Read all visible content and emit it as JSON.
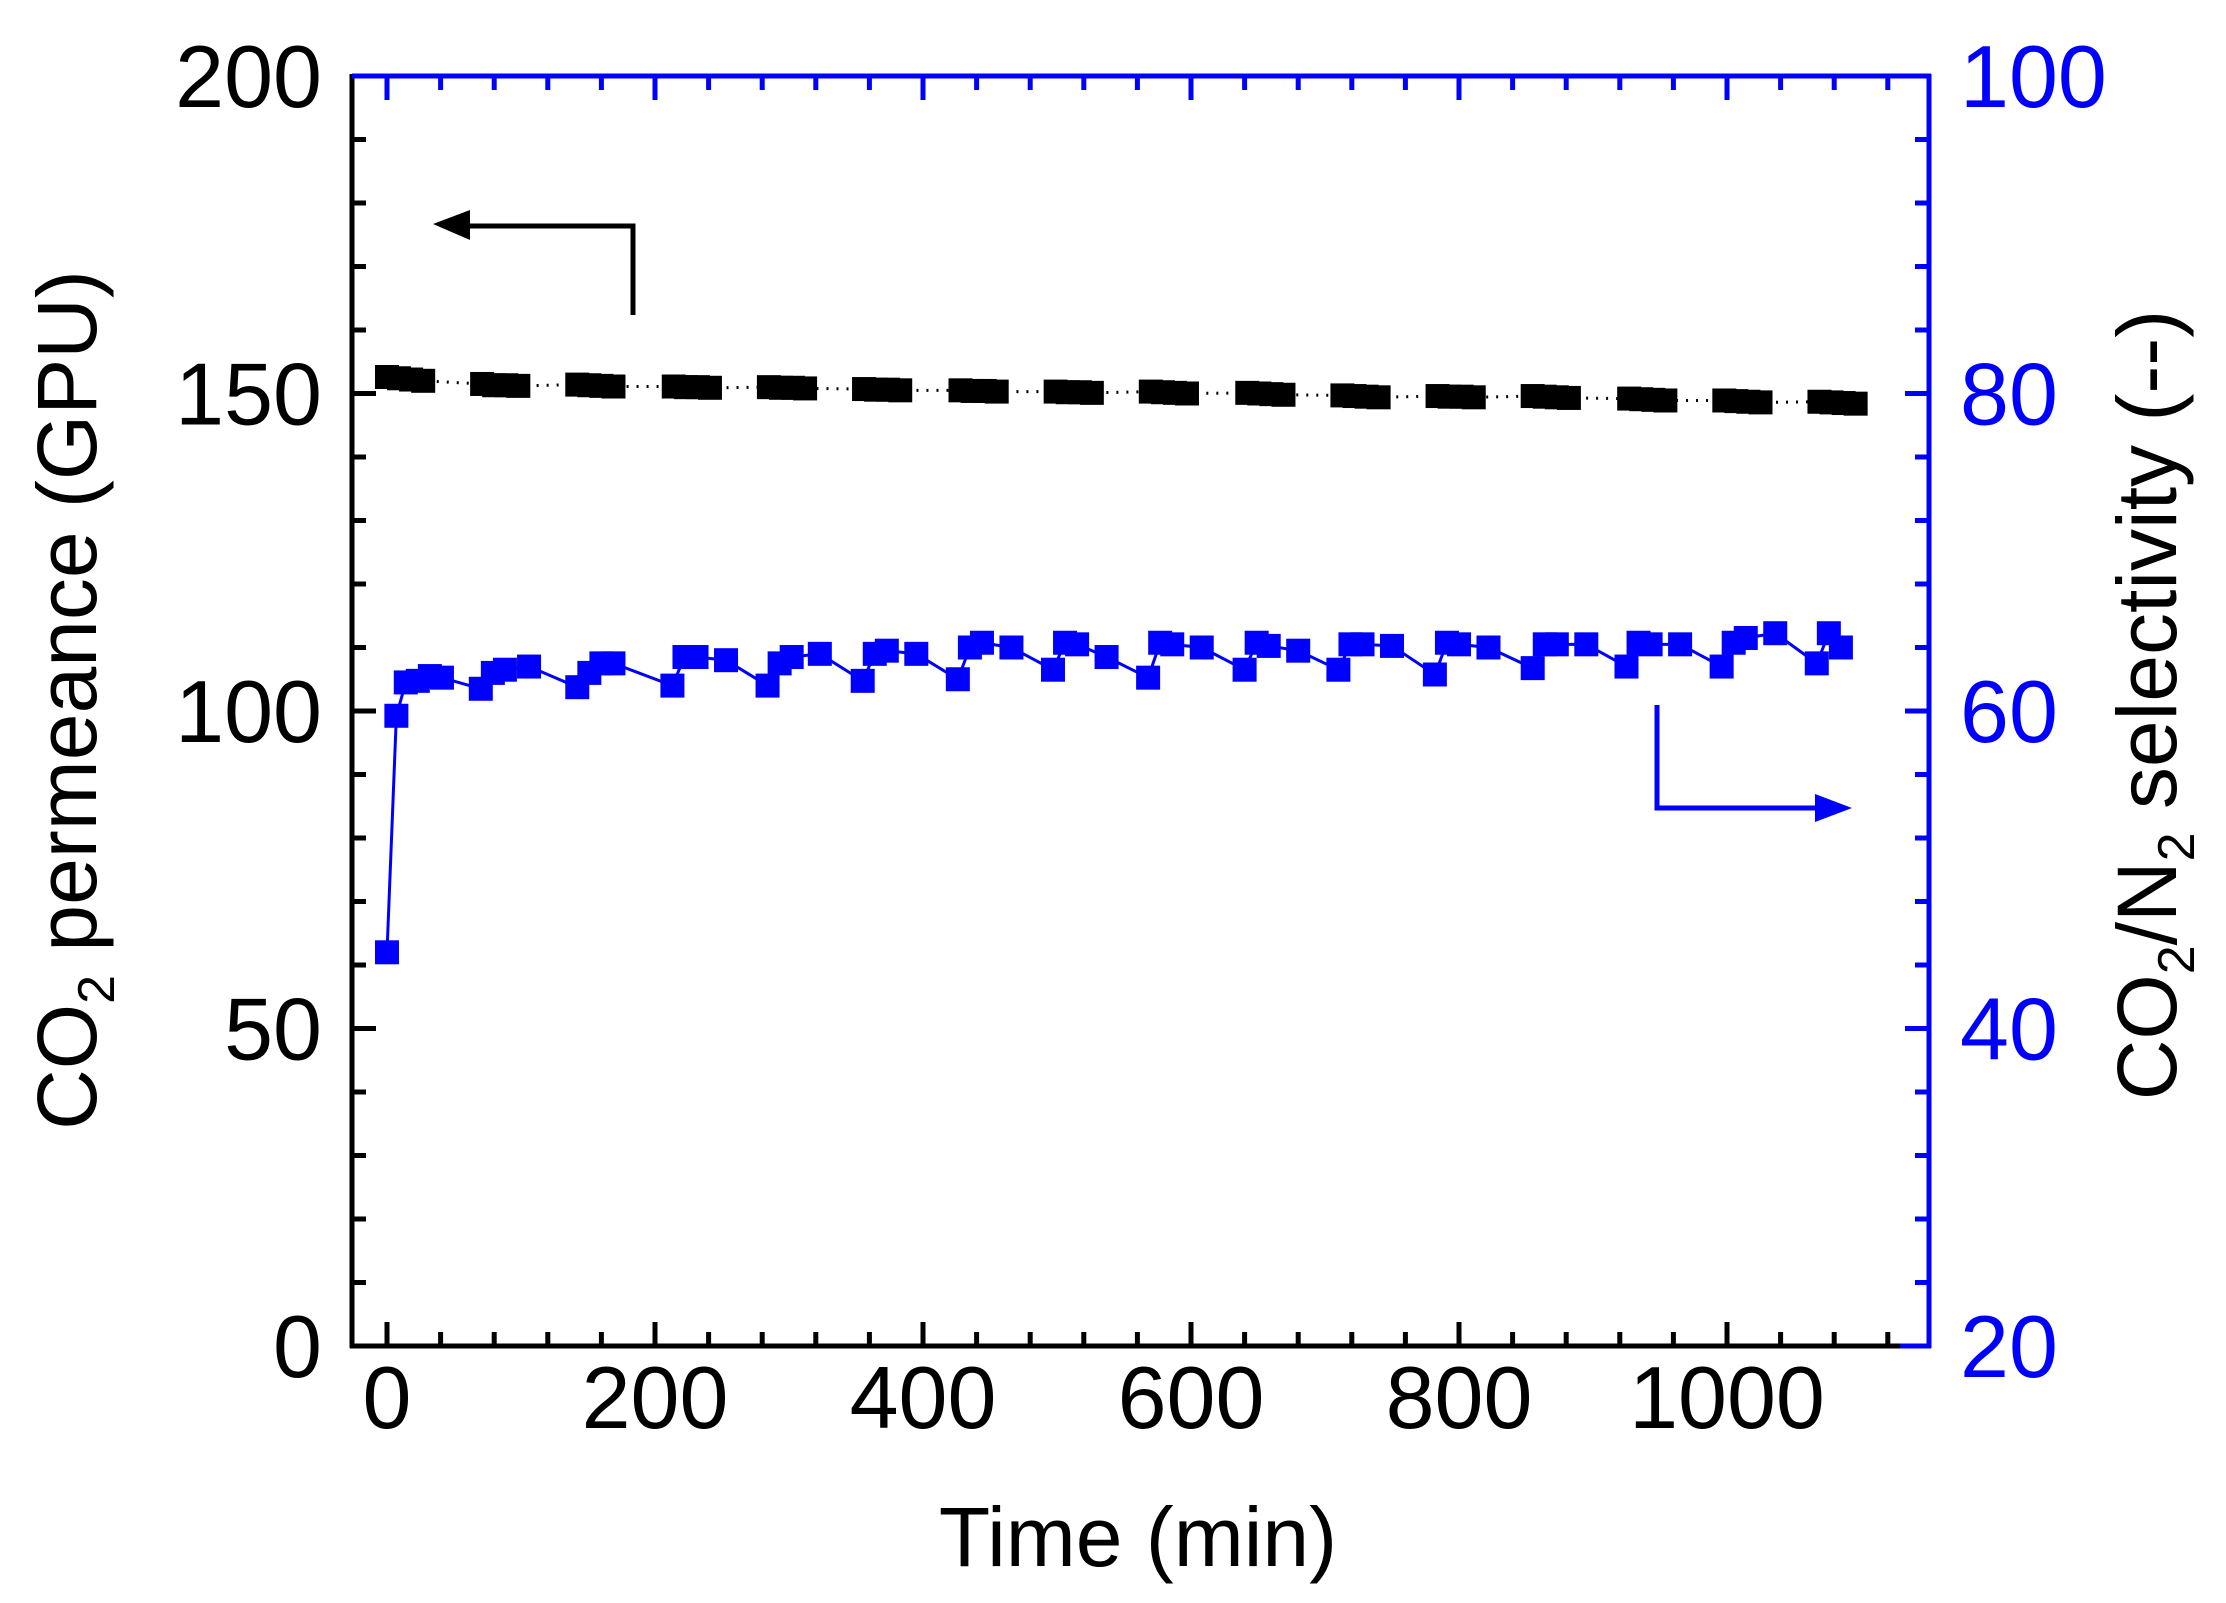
{
  "chart_data": {
    "type": "scatter",
    "title": "",
    "xlabel": "Time (min)",
    "ylabel": "CO2 permeance (GPU)",
    "ylabel_parts": {
      "pre": "CO",
      "sub": "2",
      "post": " permeance (GPU)"
    },
    "y2label": "CO2/N2 selectivity (--)",
    "y2label_parts": {
      "a": "CO",
      "a_sub": "2",
      "b": "/N",
      "b_sub": "2",
      "c": " selectivity (--)"
    },
    "xlim": [
      -26,
      1150
    ],
    "ylim": [
      0,
      200
    ],
    "y2lim": [
      20,
      100
    ],
    "xticks": [
      0,
      200,
      400,
      600,
      800,
      1000
    ],
    "yticks": [
      0,
      50,
      100,
      150,
      200
    ],
    "y2ticks": [
      20,
      40,
      60,
      80,
      100
    ],
    "grid": false,
    "legend": "none (arrows indicate axis: black series → left axis, blue series → right axis)",
    "colors": {
      "left_axis": "#000000",
      "right_axis": "#0000ff"
    },
    "series": [
      {
        "name": "CO2 permeance",
        "axis": "left",
        "color": "#000000",
        "marker": "square",
        "x": [
          0,
          9,
          18,
          27,
          71,
          80,
          89,
          98,
          142,
          151,
          160,
          169,
          214,
          223,
          232,
          241,
          285,
          294,
          303,
          312,
          356,
          365,
          374,
          383,
          428,
          437,
          446,
          455,
          499,
          508,
          517,
          526,
          570,
          579,
          588,
          597,
          642,
          651,
          660,
          669,
          713,
          722,
          731,
          740,
          784,
          793,
          802,
          811,
          855,
          864,
          873,
          882,
          927,
          936,
          945,
          954,
          998,
          1007,
          1016,
          1025,
          1069,
          1078,
          1087,
          1096
        ],
        "values": [
          152.6,
          152.4,
          152.2,
          152.0,
          151.5,
          151.3,
          151.3,
          151.2,
          151.4,
          151.3,
          151.2,
          151.1,
          151.1,
          151.0,
          151.0,
          150.9,
          151.0,
          150.9,
          150.9,
          150.8,
          150.7,
          150.6,
          150.6,
          150.5,
          150.5,
          150.4,
          150.4,
          150.3,
          150.3,
          150.2,
          150.2,
          150.1,
          150.3,
          150.2,
          150.1,
          150.0,
          150.1,
          150.0,
          149.9,
          149.8,
          149.7,
          149.6,
          149.5,
          149.4,
          149.6,
          149.5,
          149.5,
          149.4,
          149.6,
          149.5,
          149.4,
          149.3,
          149.2,
          149.1,
          149.0,
          148.9,
          148.9,
          148.8,
          148.7,
          148.6,
          148.7,
          148.6,
          148.5,
          148.4
        ]
      },
      {
        "name": "CO2/N2 selectivity",
        "axis": "right",
        "color": "#0000ff",
        "marker": "square",
        "x": [
          0,
          7,
          14,
          23,
          32,
          41,
          70,
          79,
          88,
          106,
          142,
          151,
          160,
          169,
          213,
          222,
          231,
          253,
          284,
          293,
          302,
          323,
          355,
          364,
          373,
          395,
          426,
          435,
          444,
          466,
          497,
          506,
          515,
          537,
          568,
          577,
          586,
          608,
          640,
          649,
          658,
          680,
          710,
          719,
          728,
          750,
          782,
          791,
          800,
          822,
          855,
          864,
          873,
          895,
          925,
          934,
          943,
          965,
          996,
          1005,
          1014,
          1036,
          1067,
          1076,
          1085
        ],
        "values": [
          44.8,
          59.7,
          61.8,
          61.9,
          62.2,
          62.1,
          61.4,
          62.4,
          62.6,
          62.8,
          61.5,
          62.4,
          63.0,
          63.0,
          61.6,
          63.4,
          63.4,
          63.2,
          61.6,
          63.0,
          63.4,
          63.6,
          61.9,
          63.6,
          63.8,
          63.6,
          62.0,
          64.0,
          64.3,
          64.0,
          62.6,
          64.3,
          64.2,
          63.4,
          62.1,
          64.3,
          64.2,
          64.0,
          62.6,
          64.3,
          64.1,
          63.8,
          62.6,
          64.2,
          64.2,
          64.1,
          62.3,
          64.3,
          64.2,
          64.0,
          62.7,
          64.2,
          64.2,
          64.2,
          62.8,
          64.3,
          64.2,
          64.2,
          62.8,
          64.3,
          64.6,
          64.9,
          63.0,
          64.9,
          64.0
        ]
      }
    ],
    "annotations": [
      {
        "type": "arrow",
        "color": "#000000",
        "points": "elbow from (183 min, ~159 GPU) up to ~176 GPU then left to ~35 min",
        "meaning": "points to left axis"
      },
      {
        "type": "arrow",
        "color": "#0000ff",
        "points": "elbow from (948 min, ~60 sel) down to ~53.5 then right to ~1093 min",
        "meaning": "points to right axis"
      }
    ]
  }
}
